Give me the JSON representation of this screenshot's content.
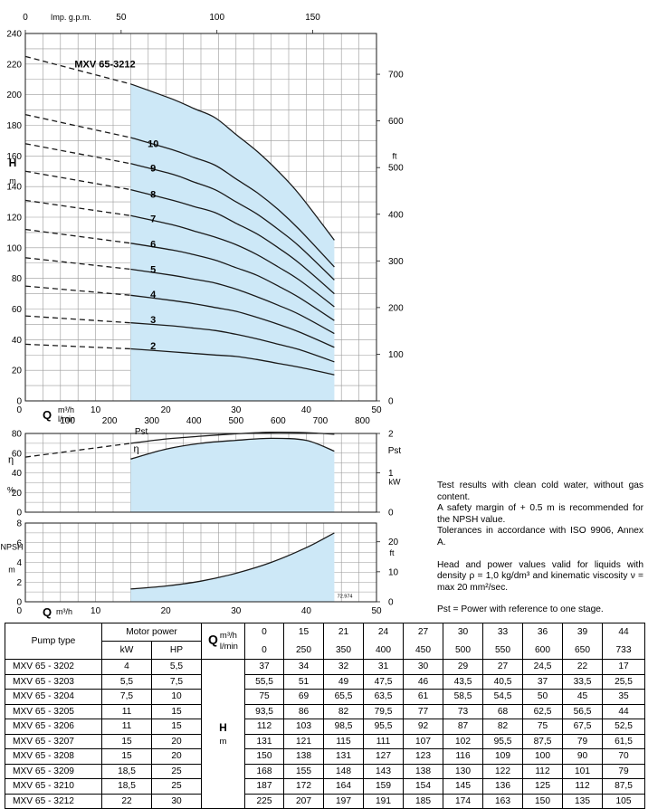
{
  "chart_data": [
    {
      "type": "line",
      "title": "MXV 65-3212",
      "ylabel": "H",
      "ylabel_unit": "m",
      "y2label": "ft",
      "xlabel": "Q",
      "xlabel_unit_1": "m³/h",
      "xlabel_unit_2": "l/min",
      "top_axis_label": "Imp. g.p.m.",
      "xlim": [
        0,
        50
      ],
      "ylim": [
        0,
        240
      ],
      "x_ticks": [
        "0",
        "10",
        "20",
        "30",
        "40",
        "50"
      ],
      "y_ticks": [
        "0",
        "20",
        "40",
        "60",
        "80",
        "100",
        "120",
        "140",
        "160",
        "180",
        "200",
        "220",
        "240"
      ],
      "ft_ticks": [
        "0",
        "100",
        "200",
        "300",
        "400",
        "500",
        "600",
        "700"
      ],
      "ft_values": [
        0,
        100,
        200,
        300,
        400,
        500,
        600,
        700
      ],
      "gpm_ticks": [
        "0",
        "50",
        "100",
        "150"
      ],
      "gpm_values": [
        0,
        50,
        100,
        150
      ],
      "lmin_ticks": [
        "100",
        "200",
        "300",
        "400",
        "500",
        "600",
        "700",
        "800"
      ],
      "lmin_values": [
        100,
        200,
        300,
        400,
        500,
        600,
        700,
        800
      ],
      "working_range": [
        15,
        44
      ],
      "x": [
        15,
        21,
        24,
        27,
        30,
        33,
        36,
        39,
        44
      ],
      "series": [
        {
          "name": "2",
          "dashed_start": 37,
          "values": [
            34,
            32,
            31,
            30,
            29,
            27,
            24.5,
            22,
            17
          ]
        },
        {
          "name": "3",
          "dashed_start": 55.5,
          "values": [
            51,
            49,
            47.5,
            46,
            43.5,
            40.5,
            37,
            33.5,
            25.5
          ]
        },
        {
          "name": "4",
          "dashed_start": 75,
          "values": [
            69,
            65.5,
            63.5,
            61,
            58.5,
            54.5,
            50,
            45,
            35
          ]
        },
        {
          "name": "5",
          "dashed_start": 93.5,
          "values": [
            86,
            82,
            79.5,
            77,
            73,
            68,
            62.5,
            56.5,
            44
          ]
        },
        {
          "name": "6",
          "dashed_start": 112,
          "values": [
            103,
            98.5,
            95.5,
            92,
            87,
            82,
            75,
            67.5,
            52.5
          ]
        },
        {
          "name": "7",
          "dashed_start": 131,
          "values": [
            121,
            115,
            111,
            107,
            102,
            95.5,
            87.5,
            79,
            61.5
          ]
        },
        {
          "name": "8",
          "dashed_start": 150,
          "values": [
            138,
            131,
            127,
            123,
            116,
            109,
            100,
            90,
            70
          ]
        },
        {
          "name": "9",
          "dashed_start": 168,
          "values": [
            155,
            148,
            143,
            138,
            130,
            122,
            112,
            101,
            79
          ]
        },
        {
          "name": "10",
          "dashed_start": 187,
          "values": [
            172,
            164,
            159,
            154,
            145,
            136,
            125,
            112,
            87.5
          ]
        },
        {
          "name": "",
          "dashed_start": 225,
          "values": [
            207,
            197,
            191,
            185,
            174,
            163,
            150,
            135,
            105
          ]
        }
      ]
    },
    {
      "type": "line",
      "ylabel": "η",
      "ylabel_unit": "%",
      "y2label": "Pst",
      "y2label_unit": "kW",
      "ylim": [
        0,
        80
      ],
      "y2lim": [
        0,
        2
      ],
      "y_ticks": [
        "0",
        "20",
        "40",
        "60",
        "80"
      ],
      "y2_ticks": [
        "0",
        "1",
        "2"
      ],
      "x": [
        15,
        20,
        25,
        30,
        35,
        40,
        44
      ],
      "series": [
        {
          "name": "Pst",
          "axis": "right",
          "dashed_x": [
            0,
            15
          ],
          "dashed_values": [
            1.4,
            1.75
          ],
          "values": [
            1.75,
            1.86,
            1.93,
            1.99,
            2.03,
            2.02,
            1.98
          ]
        },
        {
          "name": "η",
          "axis": "left",
          "values": [
            54,
            64,
            70,
            73,
            75,
            73,
            62
          ]
        }
      ]
    },
    {
      "type": "line",
      "ylabel": "NPSH",
      "ylabel_unit": "m",
      "y2label": "ft",
      "xlabel": "Q",
      "xlabel_unit": "m³/h",
      "ylim": [
        0,
        8
      ],
      "y_ticks": [
        "0",
        "2",
        "4",
        "6",
        "8"
      ],
      "ft_ticks": [
        "0",
        "10",
        "20"
      ],
      "ft_values": [
        0,
        10,
        20
      ],
      "x_ticks": [
        "0",
        "10",
        "20",
        "30",
        "40",
        "50"
      ],
      "code": "72.974",
      "x": [
        15,
        20,
        25,
        30,
        35,
        40,
        44
      ],
      "series": [
        {
          "name": "NPSH",
          "values": [
            1.3,
            1.6,
            2.1,
            2.9,
            4.0,
            5.5,
            7.0
          ]
        }
      ]
    }
  ],
  "notes": {
    "p1": "Test results with clean cold water, without gas content.",
    "p2": "A safety margin of + 0.5 m is recommended for the NPSH value.",
    "p3": "Tolerances in accordance with ISO 9906, Annex A.",
    "p4a": "Head and power values valid for liquids with density ρ = 1,0 kg/dm³ and kinematic viscosity ν = max 20 mm²/sec.",
    "p5": "Pst = Power with reference to one stage."
  },
  "table": {
    "pump_type_header": "Pump type",
    "motor_power_header": "Motor power",
    "kw_header": "kW",
    "hp_header": "HP",
    "q_label": "Q",
    "q_unit_1": "m³/h",
    "q_unit_2": "l/min",
    "h_label": "H",
    "h_unit": "m",
    "q_m3h": [
      "0",
      "15",
      "21",
      "24",
      "27",
      "30",
      "33",
      "36",
      "39",
      "44"
    ],
    "q_lmin": [
      "0",
      "250",
      "350",
      "400",
      "450",
      "500",
      "550",
      "600",
      "650",
      "733"
    ],
    "rows": [
      {
        "name": "MXV 65 - 3202",
        "kw": "4",
        "hp": "5,5",
        "h": [
          "37",
          "34",
          "32",
          "31",
          "30",
          "29",
          "27",
          "24,5",
          "22",
          "17"
        ]
      },
      {
        "name": "MXV 65 - 3203",
        "kw": "5,5",
        "hp": "7,5",
        "h": [
          "55,5",
          "51",
          "49",
          "47,5",
          "46",
          "43,5",
          "40,5",
          "37",
          "33,5",
          "25,5"
        ]
      },
      {
        "name": "MXV 65 - 3204",
        "kw": "7,5",
        "hp": "10",
        "h": [
          "75",
          "69",
          "65,5",
          "63,5",
          "61",
          "58,5",
          "54,5",
          "50",
          "45",
          "35"
        ]
      },
      {
        "name": "MXV 65 - 3205",
        "kw": "11",
        "hp": "15",
        "h": [
          "93,5",
          "86",
          "82",
          "79,5",
          "77",
          "73",
          "68",
          "62,5",
          "56,5",
          "44"
        ]
      },
      {
        "name": "MXV 65 - 3206",
        "kw": "11",
        "hp": "15",
        "h": [
          "112",
          "103",
          "98,5",
          "95,5",
          "92",
          "87",
          "82",
          "75",
          "67,5",
          "52,5"
        ]
      },
      {
        "name": "MXV 65 - 3207",
        "kw": "15",
        "hp": "20",
        "h": [
          "131",
          "121",
          "115",
          "111",
          "107",
          "102",
          "95,5",
          "87,5",
          "79",
          "61,5"
        ]
      },
      {
        "name": "MXV 65 - 3208",
        "kw": "15",
        "hp": "20",
        "h": [
          "150",
          "138",
          "131",
          "127",
          "123",
          "116",
          "109",
          "100",
          "90",
          "70"
        ]
      },
      {
        "name": "MXV 65 - 3209",
        "kw": "18,5",
        "hp": "25",
        "h": [
          "168",
          "155",
          "148",
          "143",
          "138",
          "130",
          "122",
          "112",
          "101",
          "79"
        ]
      },
      {
        "name": "MXV 65 - 3210",
        "kw": "18,5",
        "hp": "25",
        "h": [
          "187",
          "172",
          "164",
          "159",
          "154",
          "145",
          "136",
          "125",
          "112",
          "87,5"
        ]
      },
      {
        "name": "MXV 65 - 3212",
        "kw": "22",
        "hp": "30",
        "h": [
          "225",
          "207",
          "197",
          "191",
          "185",
          "174",
          "163",
          "150",
          "135",
          "105"
        ]
      }
    ]
  },
  "colors": {
    "fill": "#cde8f7",
    "grid": "#9a9a9a",
    "line": "#1a1a1a"
  }
}
